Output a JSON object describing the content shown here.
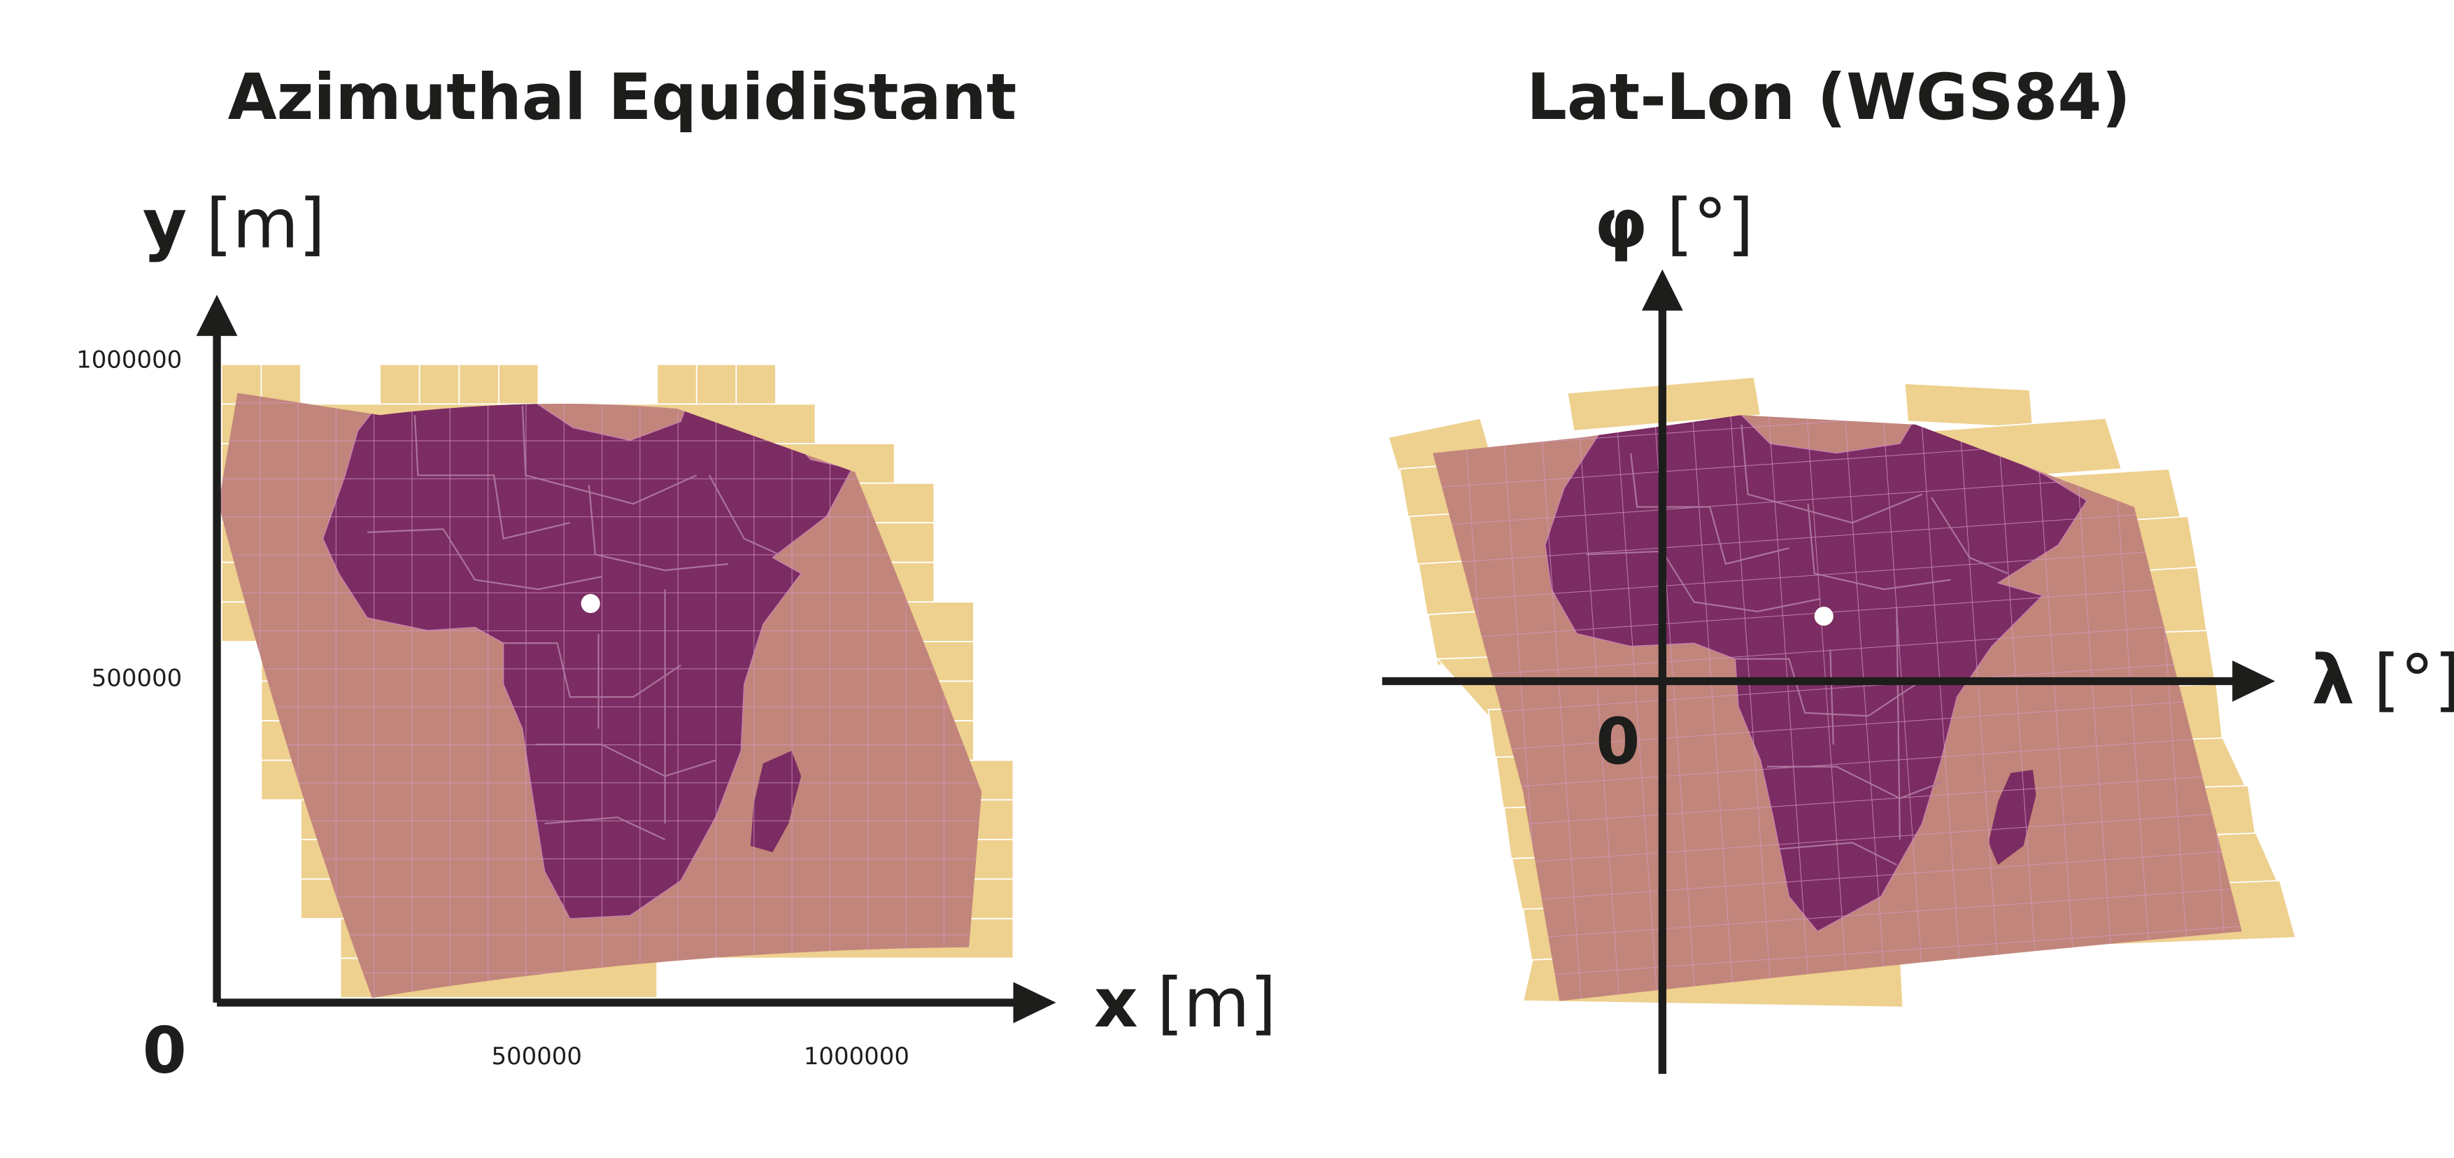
{
  "colors": {
    "background": "#ffffff",
    "ink": "#1d1d1b",
    "tiles": "#eed08f",
    "coverage": "#c2857b",
    "land": "#7b2c62",
    "borders": "#b07aa0",
    "graticule": "#d09ac6",
    "marker": "#ffffff"
  },
  "panels": [
    {
      "title": "Azimuthal Equidistant",
      "y_axis": {
        "symbol": "y",
        "unit": "[m]"
      },
      "x_axis": {
        "symbol": "x",
        "unit": "[m]"
      },
      "origin_label": "0",
      "y_ticks": [
        {
          "label": "1000000",
          "value": 1000000
        },
        {
          "label": "500000",
          "value": 500000
        }
      ],
      "x_ticks": [
        {
          "label": "500000",
          "value": 500000
        },
        {
          "label": "1000000",
          "value": 1000000
        }
      ]
    },
    {
      "title": "Lat-Lon (WGS84)",
      "y_axis": {
        "symbol": "φ",
        "unit": "[°]"
      },
      "x_axis": {
        "symbol": "λ",
        "unit": "[°]"
      },
      "origin_label": "0"
    }
  ]
}
